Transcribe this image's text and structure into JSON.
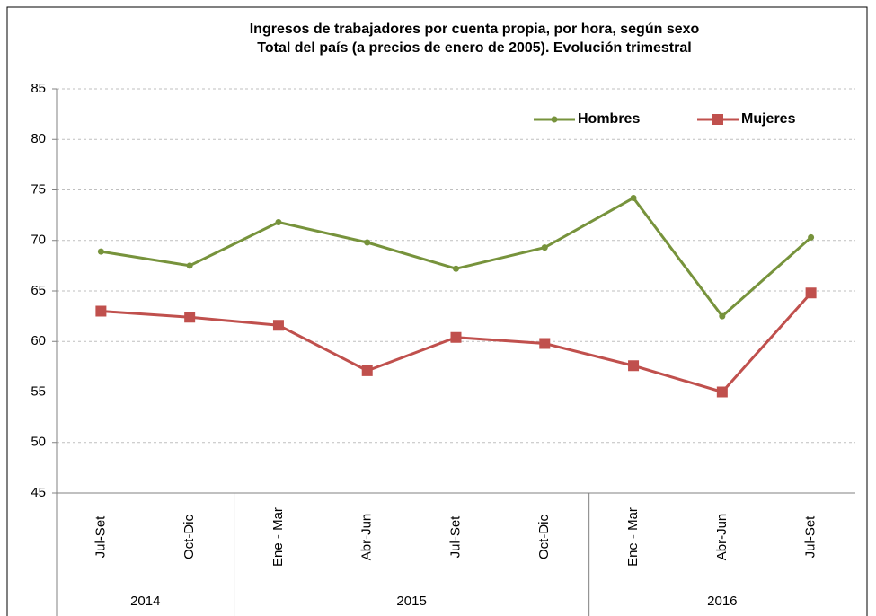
{
  "chart_data": {
    "type": "line",
    "title": "Ingresos de trabajadores por cuenta propia, por hora, según sexo",
    "subtitle": "Total del país (a precios de enero de 2005). Evolución trimestral",
    "categories": [
      "Jul-Set",
      "Oct-Dic",
      "Ene - Mar",
      "Abr-Jun",
      "Jul-Set",
      "Oct-Dic",
      "Ene - Mar",
      "Abr-Jun",
      "Jul-Set"
    ],
    "x_groups": [
      {
        "label": "2014",
        "size": 2
      },
      {
        "label": "2015",
        "size": 4
      },
      {
        "label": "2016",
        "size": 3
      }
    ],
    "series": [
      {
        "name": "Hombres",
        "color": "#77933c",
        "marker": "circle",
        "values": [
          68.9,
          67.5,
          71.8,
          69.8,
          67.2,
          69.3,
          74.2,
          62.5,
          70.3
        ]
      },
      {
        "name": "Mujeres",
        "color": "#c0504d",
        "marker": "square",
        "values": [
          63.0,
          62.4,
          61.6,
          57.1,
          60.4,
          59.8,
          57.6,
          55.0,
          64.8
        ]
      }
    ],
    "ylim": [
      45,
      85
    ],
    "yticks": [
      45,
      50,
      55,
      60,
      65,
      70,
      75,
      80,
      85
    ],
    "grid": true,
    "legend": "top-right"
  }
}
